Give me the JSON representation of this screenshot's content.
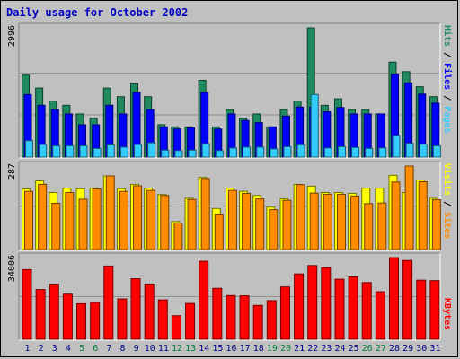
{
  "title": "Daily usage for October 2002",
  "colors": {
    "hits": "#1e8a5e",
    "files": "#0000ff",
    "pages": "#33ccff",
    "visits": "#ffff00",
    "sites": "#ff8c00",
    "kbytes": "#ff0000",
    "weekday_label": "#00008b",
    "weekend_label": "#008040"
  },
  "chart_data": [
    {
      "type": "bar",
      "panel": "top",
      "y_label_max": "2996",
      "ylim": [
        0,
        2996
      ],
      "categories": [
        "1",
        "2",
        "3",
        "4",
        "5",
        "6",
        "7",
        "8",
        "9",
        "10",
        "11",
        "12",
        "13",
        "14",
        "15",
        "16",
        "17",
        "18",
        "19",
        "20",
        "21",
        "22",
        "23",
        "24",
        "25",
        "26",
        "27",
        "28",
        "29",
        "30",
        "31"
      ],
      "weekend_days": [
        "5",
        "6",
        "12",
        "13",
        "19",
        "20",
        "26",
        "27"
      ],
      "legend": [
        {
          "text": "Hits",
          "color_key": "hits"
        },
        {
          "text": "Files",
          "color_key": "files"
        },
        {
          "text": "Pages",
          "color_key": "pages"
        }
      ],
      "series": [
        {
          "name": "Hits",
          "color_key": "hits",
          "values": [
            1900,
            1600,
            1300,
            1200,
            1000,
            900,
            1600,
            1400,
            1700,
            1400,
            750,
            700,
            700,
            1780,
            700,
            1100,
            900,
            1000,
            700,
            1100,
            1300,
            2996,
            1200,
            1350,
            1100,
            1100,
            1000,
            2200,
            1980,
            1630,
            1400
          ]
        },
        {
          "name": "Files",
          "color_key": "files",
          "values": [
            1450,
            1200,
            1100,
            1000,
            750,
            750,
            1200,
            1000,
            1500,
            1100,
            700,
            650,
            680,
            1500,
            650,
            1000,
            850,
            800,
            700,
            950,
            1160,
            1160,
            1050,
            1150,
            1000,
            1000,
            1000,
            1920,
            1720,
            1460,
            1250
          ]
        },
        {
          "name": "Pages",
          "color_key": "pages",
          "values": [
            380,
            290,
            260,
            260,
            260,
            200,
            280,
            230,
            290,
            330,
            160,
            150,
            160,
            310,
            150,
            210,
            230,
            230,
            190,
            240,
            280,
            1450,
            210,
            240,
            220,
            200,
            210,
            500,
            320,
            300,
            260
          ]
        }
      ]
    },
    {
      "type": "bar",
      "panel": "middle",
      "y_label_max": "287",
      "ylim": [
        0,
        287
      ],
      "categories": [
        "1",
        "2",
        "3",
        "4",
        "5",
        "6",
        "7",
        "8",
        "9",
        "10",
        "11",
        "12",
        "13",
        "14",
        "15",
        "16",
        "17",
        "18",
        "19",
        "20",
        "21",
        "22",
        "23",
        "24",
        "25",
        "26",
        "27",
        "28",
        "29",
        "30",
        "31"
      ],
      "legend": [
        {
          "text": "Visits",
          "color_key": "visits"
        },
        {
          "text": "Sites",
          "color_key": "sites"
        }
      ],
      "series": [
        {
          "name": "Visits",
          "color_key": "visits",
          "values": [
            208,
            236,
            196,
            211,
            209,
            211,
            253,
            209,
            224,
            211,
            189,
            96,
            176,
            248,
            141,
            211,
            200,
            186,
            146,
            174,
            224,
            218,
            196,
            196,
            193,
            211,
            211,
            255,
            196,
            239,
            176
          ]
        },
        {
          "name": "Sites",
          "color_key": "sites",
          "values": [
            200,
            224,
            159,
            196,
            173,
            208,
            253,
            200,
            219,
            203,
            186,
            91,
            172,
            244,
            122,
            203,
            193,
            174,
            137,
            169,
            223,
            194,
            190,
            190,
            184,
            158,
            160,
            232,
            287,
            233,
            171
          ]
        }
      ]
    },
    {
      "type": "bar",
      "panel": "bottom",
      "y_label_max": "34006",
      "ylim": [
        0,
        34006
      ],
      "categories": [
        "1",
        "2",
        "3",
        "4",
        "5",
        "6",
        "7",
        "8",
        "9",
        "10",
        "11",
        "12",
        "13",
        "14",
        "15",
        "16",
        "17",
        "18",
        "19",
        "20",
        "21",
        "22",
        "23",
        "24",
        "25",
        "26",
        "27",
        "28",
        "29",
        "30",
        "31"
      ],
      "legend": [
        {
          "text": "KBytes",
          "color_key": "kbytes"
        }
      ],
      "series": [
        {
          "name": "KBytes",
          "color_key": "kbytes",
          "values": [
            29000,
            20700,
            23000,
            18800,
            14800,
            15400,
            30500,
            16800,
            25200,
            23000,
            16400,
            9800,
            14900,
            32500,
            21200,
            18200,
            18100,
            14100,
            16100,
            21800,
            27200,
            30700,
            29800,
            25000,
            26000,
            23600,
            19800,
            34006,
            32800,
            24600,
            24400
          ]
        }
      ]
    }
  ]
}
